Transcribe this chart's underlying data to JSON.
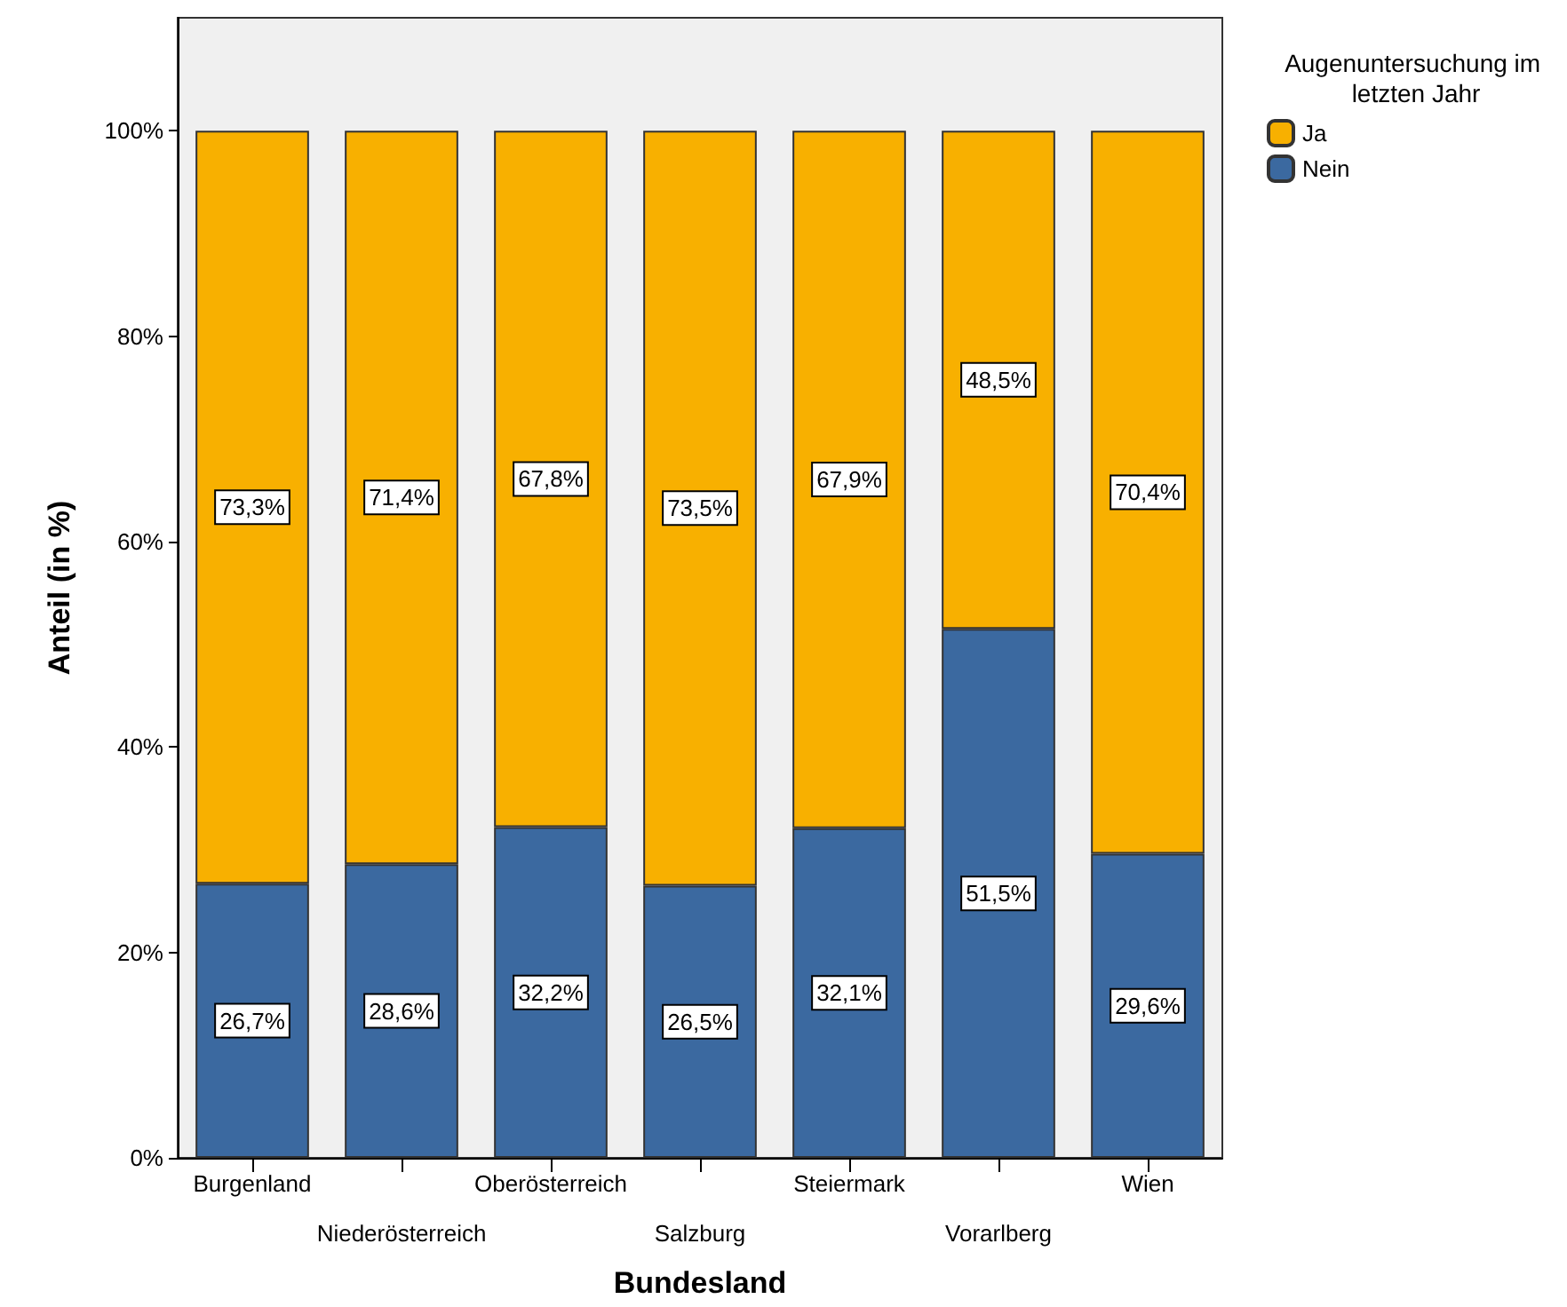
{
  "chart_data": {
    "type": "bar",
    "xlabel": "Bundesland",
    "ylabel": "Anteil (in %)",
    "legend_title": "Augenuntersuchung im letzten Jahr",
    "categories": [
      "Burgenland",
      "Niederösterreich",
      "Oberösterreich",
      "Salzburg",
      "Steiermark",
      "Vorarlberg",
      "Wien"
    ],
    "stacked": true,
    "series": [
      {
        "name": "Nein",
        "color": "#3b69a0",
        "values": [
          26.7,
          28.6,
          32.2,
          26.5,
          32.1,
          51.5,
          29.6
        ],
        "value_labels": [
          "26,7%",
          "28,6%",
          "32,2%",
          "26,5%",
          "32,1%",
          "51,5%",
          "29,6%"
        ]
      },
      {
        "name": "Ja",
        "color": "#f8b000",
        "values": [
          73.3,
          71.4,
          67.8,
          73.5,
          67.9,
          48.5,
          70.4
        ],
        "value_labels": [
          "73,3%",
          "71,4%",
          "67,8%",
          "73,5%",
          "67,9%",
          "48,5%",
          "70,4%"
        ]
      }
    ],
    "ylim": [
      0,
      111
    ],
    "yticks": [
      {
        "value": 0,
        "label": "0%"
      },
      {
        "value": 20,
        "label": "20%"
      },
      {
        "value": 40,
        "label": "40%"
      },
      {
        "value": 60,
        "label": "60%"
      },
      {
        "value": 80,
        "label": "80%"
      },
      {
        "value": 100,
        "label": "100%"
      }
    ],
    "grid": false,
    "legend": "top right"
  }
}
